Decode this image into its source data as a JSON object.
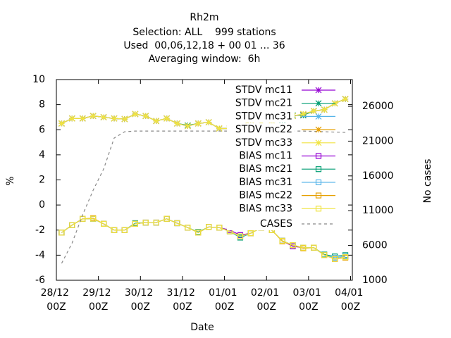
{
  "chart_data": {
    "type": "line",
    "title": "Rh2m",
    "subtitles": [
      "Selection: ALL    999 stations",
      "Used  00,06,12,18 + 00 01 ... 36",
      "Averaging window:  6h"
    ],
    "xlabel": "Date",
    "ylabel": "%",
    "y2label": "No cases",
    "xlim": [
      0,
      169
    ],
    "xticks": [
      {
        "value": 0,
        "label": "28/12 00Z"
      },
      {
        "value": 24,
        "label": "29/12 00Z"
      },
      {
        "value": 48,
        "label": "30/12 00Z"
      },
      {
        "value": 72,
        "label": "31/12 00Z"
      },
      {
        "value": 96,
        "label": "01/01 00Z"
      },
      {
        "value": 120,
        "label": "02/01 00Z"
      },
      {
        "value": 144,
        "label": "03/01 00Z"
      },
      {
        "value": 168,
        "label": "04/01 00Z"
      }
    ],
    "ylim": [
      -6,
      10
    ],
    "yticks": [
      -6,
      -4,
      -2,
      0,
      2,
      4,
      6,
      8,
      10
    ],
    "y2lim": [
      1000,
      29850
    ],
    "y2ticks": [
      1000,
      6000,
      11000,
      16000,
      21000,
      26000
    ],
    "legend": "top-right",
    "x": [
      3,
      9,
      15,
      21,
      27,
      33,
      39,
      45,
      51,
      57,
      63,
      69,
      75,
      81,
      87,
      93,
      99,
      105,
      111,
      117,
      123,
      129,
      135,
      141,
      147,
      153,
      159,
      165
    ],
    "series": [
      {
        "name": "STDV mc11",
        "color": "#9400d3",
        "marker": "star",
        "values": [
          6.5,
          6.9,
          6.9,
          7.1,
          7.0,
          6.9,
          6.85,
          7.25,
          7.1,
          6.7,
          6.9,
          6.5,
          6.3,
          6.5,
          6.6,
          6.1,
          6.1,
          6.2,
          6.75,
          6.6,
          6.7,
          6.8,
          7.1,
          7.2,
          7.5,
          7.6,
          8.1,
          8.45
        ]
      },
      {
        "name": "STDV mc21",
        "color": "#009e73",
        "marker": "star",
        "values": [
          6.5,
          6.9,
          6.9,
          7.1,
          7.0,
          6.9,
          6.85,
          7.25,
          7.1,
          6.7,
          6.9,
          6.5,
          6.35,
          6.5,
          6.6,
          6.1,
          6.1,
          6.2,
          6.75,
          6.6,
          6.7,
          6.75,
          7.15,
          7.15,
          7.5,
          7.6,
          8.1,
          8.45
        ]
      },
      {
        "name": "STDV mc31",
        "color": "#56b4e9",
        "marker": "star",
        "values": [
          6.5,
          6.9,
          6.9,
          7.1,
          7.0,
          6.9,
          6.85,
          7.25,
          7.1,
          6.7,
          6.9,
          6.5,
          6.3,
          6.5,
          6.6,
          6.1,
          6.1,
          6.2,
          6.75,
          6.6,
          6.7,
          6.85,
          7.1,
          7.25,
          7.5,
          7.6,
          8.1,
          8.45
        ]
      },
      {
        "name": "STDV mc22",
        "color": "#e69f00",
        "marker": "star",
        "values": [
          6.5,
          6.9,
          6.9,
          7.1,
          7.0,
          6.9,
          6.85,
          7.25,
          7.1,
          6.7,
          6.9,
          6.5,
          6.3,
          6.5,
          6.6,
          6.1,
          6.1,
          6.2,
          6.75,
          6.6,
          6.7,
          6.85,
          7.1,
          7.25,
          7.5,
          7.6,
          8.1,
          8.45
        ]
      },
      {
        "name": "STDV mc33",
        "color": "#f0e442",
        "marker": "star",
        "values": [
          6.5,
          6.9,
          6.9,
          7.1,
          7.0,
          6.9,
          6.85,
          7.25,
          7.1,
          6.7,
          6.9,
          6.5,
          6.3,
          6.5,
          6.6,
          6.1,
          6.1,
          6.2,
          6.75,
          6.6,
          6.7,
          6.85,
          7.1,
          7.25,
          7.5,
          7.6,
          8.1,
          8.45
        ]
      },
      {
        "name": "BIAS mc11",
        "color": "#9400d3",
        "marker": "square",
        "values": [
          -2.2,
          -1.6,
          -1.1,
          -1.1,
          -1.5,
          -2.0,
          -2.0,
          -1.5,
          -1.4,
          -1.4,
          -1.1,
          -1.45,
          -1.8,
          -2.2,
          -1.75,
          -1.8,
          -2.0,
          -2.4,
          -2.25,
          -1.8,
          -2.0,
          -2.85,
          -3.3,
          -3.4,
          -3.4,
          -4.0,
          -4.3,
          -4.15
        ]
      },
      {
        "name": "BIAS mc21",
        "color": "#009e73",
        "marker": "square",
        "values": [
          -2.2,
          -1.6,
          -1.1,
          -1.1,
          -1.5,
          -2.0,
          -2.0,
          -1.45,
          -1.4,
          -1.4,
          -1.1,
          -1.45,
          -1.8,
          -2.15,
          -1.75,
          -1.8,
          -2.1,
          -2.6,
          -2.25,
          -1.8,
          -2.0,
          -2.85,
          -3.2,
          -3.4,
          -3.4,
          -3.95,
          -4.1,
          -4.0
        ]
      },
      {
        "name": "BIAS mc31",
        "color": "#56b4e9",
        "marker": "square",
        "values": [
          -2.2,
          -1.6,
          -1.1,
          -1.1,
          -1.5,
          -2.0,
          -2.0,
          -1.5,
          -1.4,
          -1.4,
          -1.1,
          -1.45,
          -1.8,
          -2.2,
          -1.75,
          -1.8,
          -2.1,
          -2.55,
          -2.25,
          -1.8,
          -2.0,
          -2.85,
          -3.2,
          -3.4,
          -3.4,
          -4.0,
          -4.2,
          -4.1
        ]
      },
      {
        "name": "BIAS mc22",
        "color": "#e69f00",
        "marker": "square",
        "values": [
          -2.2,
          -1.6,
          -1.1,
          -1.05,
          -1.5,
          -2.0,
          -2.0,
          -1.5,
          -1.4,
          -1.4,
          -1.1,
          -1.45,
          -1.8,
          -2.2,
          -1.75,
          -1.8,
          -2.1,
          -2.5,
          -2.25,
          -1.8,
          -2.0,
          -2.9,
          -3.2,
          -3.45,
          -3.4,
          -4.0,
          -4.3,
          -4.2
        ]
      },
      {
        "name": "BIAS mc33",
        "color": "#f0e442",
        "marker": "square",
        "values": [
          -2.2,
          -1.6,
          -1.1,
          -1.1,
          -1.5,
          -2.0,
          -2.0,
          -1.5,
          -1.4,
          -1.4,
          -1.1,
          -1.45,
          -1.8,
          -2.2,
          -1.75,
          -1.8,
          -2.1,
          -2.5,
          -2.25,
          -1.8,
          -2.0,
          -2.85,
          -3.2,
          -3.4,
          -3.4,
          -4.0,
          -4.3,
          -4.15
        ]
      },
      {
        "name": "CASES",
        "color": "#888888",
        "marker": "none",
        "dashed": true,
        "axis": "y2",
        "values": [
          3430,
          6360,
          10400,
          13950,
          17000,
          21450,
          22350,
          22450,
          22450,
          22450,
          22450,
          22450,
          22450,
          22450,
          22450,
          22450,
          22450,
          22450,
          22450,
          22450,
          22450,
          22450,
          22450,
          22450,
          22400,
          22350,
          22300,
          22250
        ]
      }
    ]
  }
}
